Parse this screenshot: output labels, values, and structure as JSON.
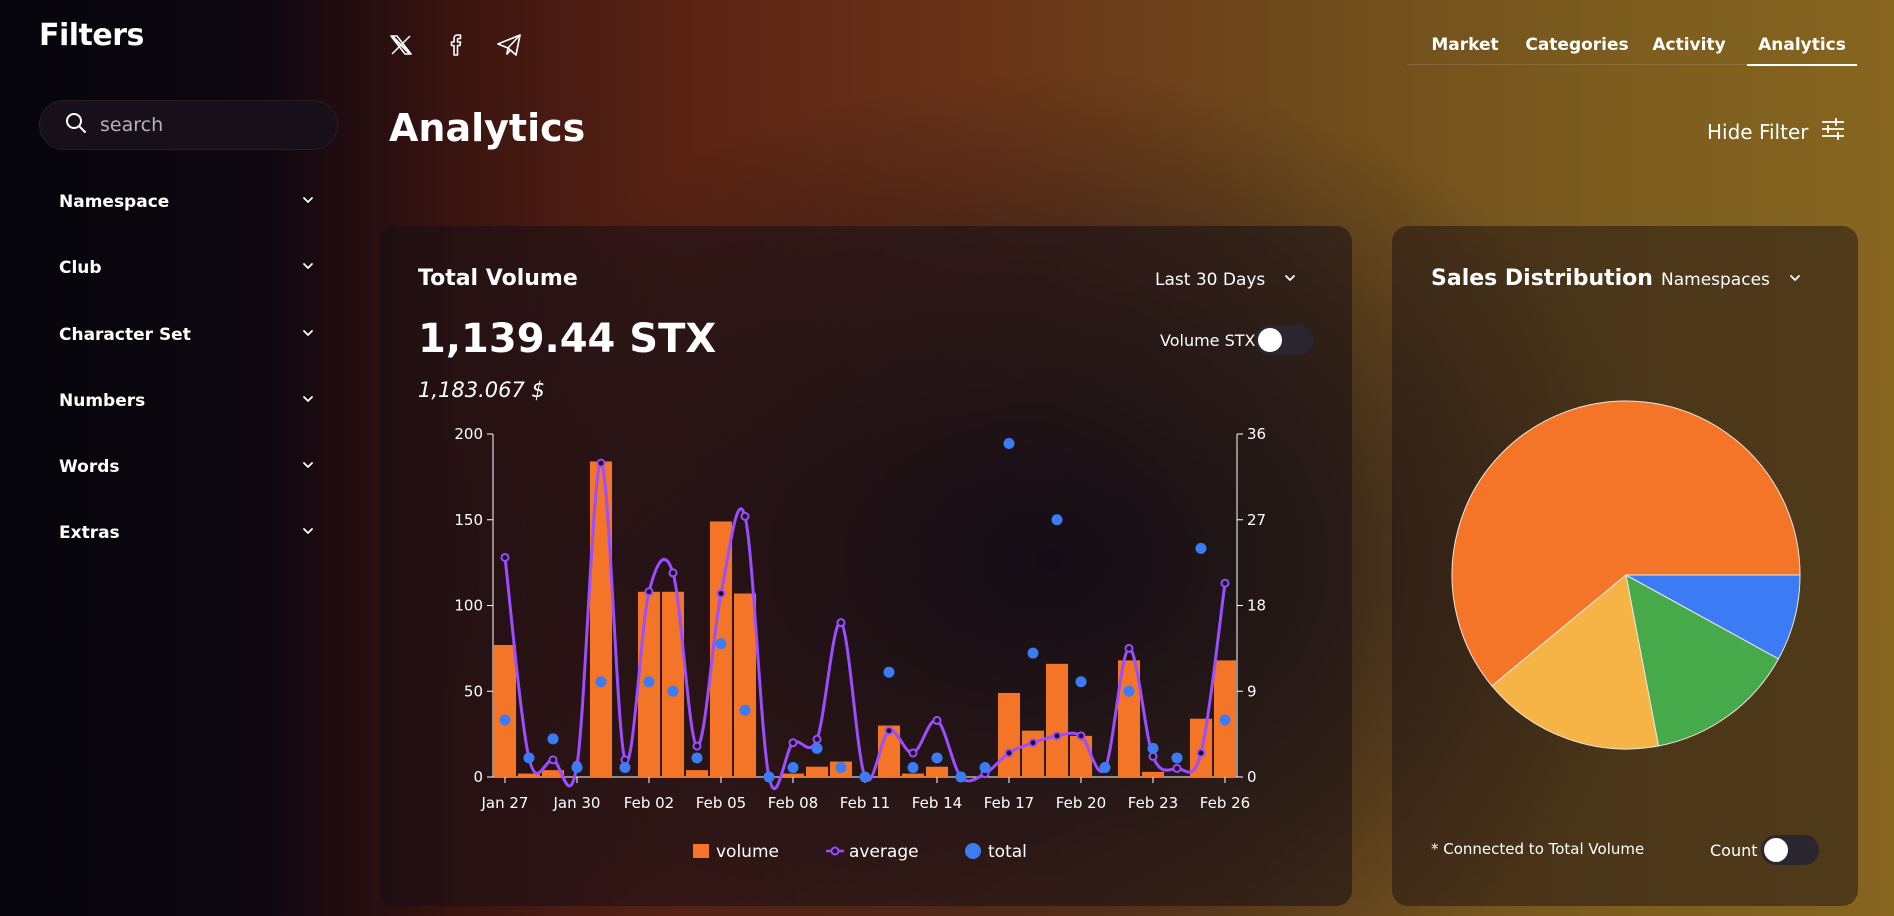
{
  "sidebar": {
    "title": "Filters",
    "search_placeholder": "search",
    "items": [
      {
        "label": "Namespace"
      },
      {
        "label": "Club"
      },
      {
        "label": "Character Set"
      },
      {
        "label": "Numbers"
      },
      {
        "label": "Words"
      },
      {
        "label": "Extras"
      }
    ]
  },
  "header": {
    "social_icons": [
      "x-icon",
      "facebook-icon",
      "telegram-icon"
    ],
    "nav": [
      {
        "label": "Market"
      },
      {
        "label": "Categories"
      },
      {
        "label": "Activity"
      },
      {
        "label": "Analytics",
        "active": true
      }
    ],
    "page_title": "Analytics",
    "hide_filter_label": "Hide Filter"
  },
  "total_volume": {
    "title": "Total Volume",
    "period_label": "Last 30 Days",
    "value": "1,139.44 STX",
    "usd_value": "1,183.067 $",
    "toggle_label": "Volume STX",
    "toggle_on": false
  },
  "sales_distribution": {
    "title": "Sales Distribution",
    "group_label": "Namespaces",
    "footnote": "* Connected to Total Volume",
    "toggle_label": "Count",
    "toggle_on": false
  },
  "colors": {
    "volume": "#f47428",
    "average": "#9b4dff",
    "total": "#3b7cf5",
    "pie": [
      "#f47428",
      "#f6b446",
      "#46a94a",
      "#3b7cf5"
    ]
  },
  "chart_data": [
    {
      "type": "bar",
      "title": "Total Volume",
      "x_tick_labels": [
        "Jan 27",
        "Jan 30",
        "Feb 02",
        "Feb 05",
        "Feb 08",
        "Feb 11",
        "Feb 14",
        "Feb 17",
        "Feb 20",
        "Feb 23",
        "Feb 26"
      ],
      "x_tick_index": [
        0,
        3,
        6,
        9,
        12,
        15,
        18,
        21,
        24,
        27,
        30
      ],
      "ylim_left": [
        0,
        200
      ],
      "yticks_left": [
        0,
        50,
        100,
        150,
        200
      ],
      "ylim_right": [
        0,
        36
      ],
      "yticks_right": [
        0,
        9,
        18,
        27,
        36
      ],
      "legend": [
        "volume",
        "average",
        "total"
      ],
      "series": [
        {
          "name": "volume",
          "kind": "bar",
          "axis": "left",
          "values": [
            77,
            2,
            4,
            0,
            184,
            0,
            108,
            108,
            4,
            149,
            107,
            0,
            2,
            6,
            9,
            0,
            30,
            2,
            6,
            0,
            0,
            49,
            27,
            66,
            24,
            0,
            68,
            3,
            0,
            34,
            68
          ]
        },
        {
          "name": "average",
          "kind": "line",
          "axis": "left",
          "values": [
            128,
            11,
            10,
            7,
            183,
            10,
            108,
            119,
            18,
            107,
            152,
            0,
            20,
            22,
            90,
            0,
            27,
            14,
            33,
            0,
            2,
            14,
            20,
            24,
            24,
            5,
            75,
            12,
            5,
            14,
            113
          ]
        },
        {
          "name": "total",
          "kind": "scatter",
          "axis": "right",
          "values": [
            6,
            2,
            4,
            1,
            10,
            1,
            10,
            9,
            2,
            14,
            7,
            0,
            1,
            3,
            1,
            0,
            11,
            1,
            2,
            0,
            1,
            35,
            13,
            27,
            10,
            1,
            9,
            3,
            2,
            24,
            6
          ]
        }
      ]
    },
    {
      "type": "pie",
      "title": "Sales Distribution",
      "values": [
        61,
        17,
        14,
        8
      ],
      "labels": [
        "",
        "",
        "",
        ""
      ]
    }
  ]
}
